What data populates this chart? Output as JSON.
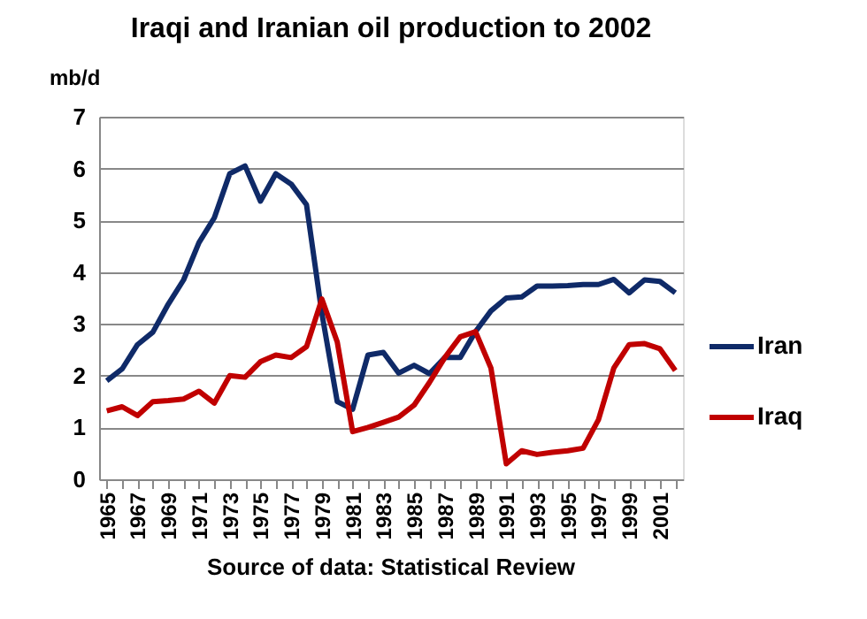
{
  "chart_data": {
    "type": "line",
    "title": "Iraqi and Iranian oil production to 2002",
    "ylabel": "mb/d",
    "categories": [
      "1965",
      null,
      "1967",
      null,
      "1969",
      null,
      "1971",
      null,
      "1973",
      null,
      "1975",
      null,
      "1977",
      null,
      "1979",
      null,
      "1981",
      null,
      "1983",
      null,
      "1985",
      null,
      "1987",
      null,
      "1989",
      null,
      "1991",
      null,
      "1993",
      null,
      "1995",
      null,
      "1997",
      null,
      "1999",
      null,
      "2001",
      null
    ],
    "series": [
      {
        "name": "Iran",
        "color": "#0f2a68",
        "values": [
          1.9,
          2.13,
          2.6,
          2.84,
          3.38,
          3.85,
          4.57,
          5.05,
          5.9,
          6.05,
          5.37,
          5.9,
          5.7,
          5.3,
          3.2,
          1.5,
          1.35,
          2.4,
          2.45,
          2.05,
          2.2,
          2.04,
          2.35,
          2.35,
          2.85,
          3.25,
          3.5,
          3.52,
          3.73,
          3.73,
          3.74,
          3.76,
          3.76,
          3.86,
          3.6,
          3.85,
          3.82,
          3.6
        ]
      },
      {
        "name": "Iraq",
        "color": "#c00000",
        "values": [
          1.32,
          1.4,
          1.23,
          1.5,
          1.52,
          1.55,
          1.7,
          1.47,
          2.0,
          1.97,
          2.27,
          2.4,
          2.35,
          2.56,
          3.48,
          2.65,
          0.92,
          1.0,
          1.1,
          1.2,
          1.43,
          1.87,
          2.35,
          2.75,
          2.85,
          2.15,
          0.3,
          0.55,
          0.48,
          0.52,
          0.55,
          0.6,
          1.15,
          2.15,
          2.6,
          2.62,
          2.52,
          2.1
        ]
      }
    ],
    "ylim": [
      0,
      7
    ],
    "yticks": [
      0,
      1,
      2,
      3,
      4,
      5,
      6,
      7
    ],
    "grid": "y",
    "legend": "right",
    "line_style": "solid",
    "marker": "none",
    "annotations": [
      "Source of data: Statistical Review"
    ]
  }
}
